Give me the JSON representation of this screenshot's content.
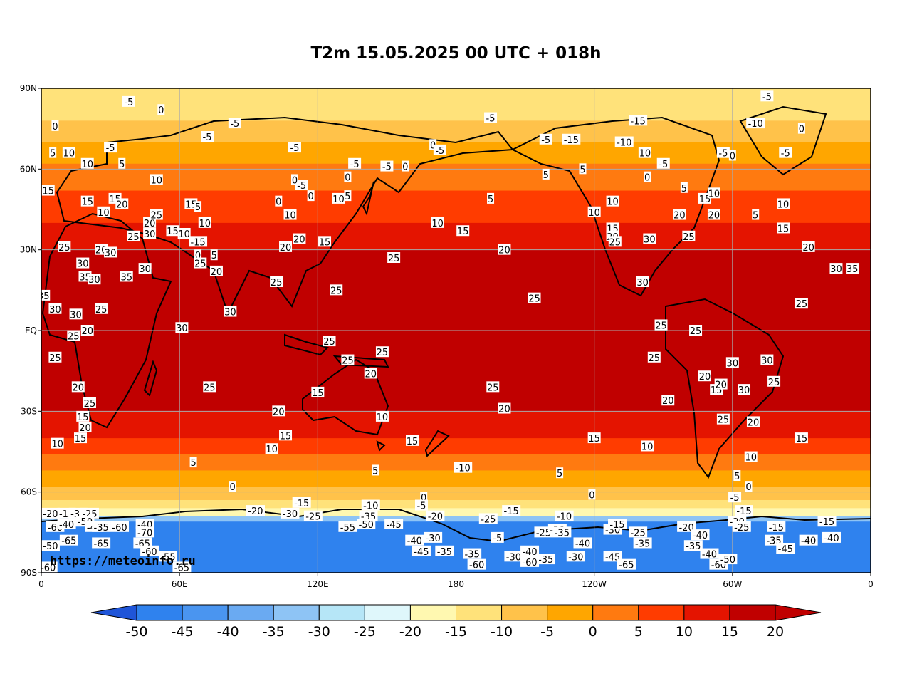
{
  "title": "T2m 15.05.2025 00 UTC + 018h",
  "watermark": "https://meteoinfo.ru",
  "axes": {
    "lat_labels": [
      "90N",
      "60N",
      "30N",
      "EQ",
      "30S",
      "60S",
      "90S"
    ],
    "lon_labels": [
      "0",
      "60E",
      "120E",
      "180",
      "120W",
      "60W",
      "0"
    ]
  },
  "colorbar": {
    "levels": [
      "-50",
      "-45",
      "-40",
      "-35",
      "-30",
      "-25",
      "-20",
      "-15",
      "-10",
      "-5",
      "0",
      "5",
      "10",
      "15",
      "20"
    ],
    "colors": [
      "#1e6fe6",
      "#2f82ee",
      "#4a95f0",
      "#6aaaf2",
      "#8ec4f5",
      "#b6e6f7",
      "#dff7fb",
      "#fff8b0",
      "#ffe27a",
      "#ffc24a",
      "#ffa600",
      "#ff7a10",
      "#ff3c00",
      "#e41400",
      "#c00000"
    ],
    "low_color": "#1f55d8",
    "high_color": "#c00000"
  },
  "bands": [
    {
      "lat": 90,
      "color": "#ffe27a"
    },
    {
      "lat": 78,
      "color": "#ffc24a"
    },
    {
      "lat": 70,
      "color": "#ffa600"
    },
    {
      "lat": 62,
      "color": "#ff7a10"
    },
    {
      "lat": 52,
      "color": "#ff3c00"
    },
    {
      "lat": 40,
      "color": "#e41400"
    },
    {
      "lat": 30,
      "color": "#c00000"
    },
    {
      "lat": -30,
      "color": "#e41400"
    },
    {
      "lat": -40,
      "color": "#ff3c00"
    },
    {
      "lat": -46,
      "color": "#ff7a10"
    },
    {
      "lat": -52,
      "color": "#ffa600"
    },
    {
      "lat": -58,
      "color": "#ffc24a"
    },
    {
      "lat": -63,
      "color": "#ffe27a"
    },
    {
      "lat": -66,
      "color": "#fff8b0"
    },
    {
      "lat": -69,
      "color": "#8ec4f5"
    },
    {
      "lat": -71,
      "color": "#2f82ee"
    },
    {
      "lat": -90,
      "color": "#1e6fe6"
    }
  ],
  "contour_labels": [
    {
      "t": "-5",
      "lon": -175,
      "lat": 88
    },
    {
      "t": "-5",
      "lon": -160,
      "lat": 87
    },
    {
      "t": "-5",
      "lon": 38,
      "lat": 85
    },
    {
      "t": "0",
      "lon": 52,
      "lat": 82
    },
    {
      "t": "-5",
      "lon": 84,
      "lat": 77
    },
    {
      "t": "-5",
      "lon": 72,
      "lat": 72
    },
    {
      "t": "-5",
      "lon": 30,
      "lat": 68
    },
    {
      "t": "0",
      "lon": 6,
      "lat": 76
    },
    {
      "t": "5",
      "lon": 5,
      "lat": 66
    },
    {
      "t": "10",
      "lon": 12,
      "lat": 66
    },
    {
      "t": "10",
      "lon": 20,
      "lat": 62
    },
    {
      "t": "15",
      "lon": 3,
      "lat": 52
    },
    {
      "t": "5",
      "lon": 35,
      "lat": 62
    },
    {
      "t": "10",
      "lon": 50,
      "lat": 56
    },
    {
      "t": "15",
      "lon": 20,
      "lat": 48
    },
    {
      "t": "10",
      "lon": 27,
      "lat": 44
    },
    {
      "t": "15",
      "lon": 32,
      "lat": 49
    },
    {
      "t": "20",
      "lon": 35,
      "lat": 47
    },
    {
      "t": "25",
      "lon": 40,
      "lat": 35
    },
    {
      "t": "20",
      "lon": 47,
      "lat": 40
    },
    {
      "t": "25",
      "lon": 50,
      "lat": 43
    },
    {
      "t": "30",
      "lon": 47,
      "lat": 36
    },
    {
      "t": "15",
      "lon": 57,
      "lat": 37
    },
    {
      "t": "10",
      "lon": 62,
      "lat": 36
    },
    {
      "t": "15",
      "lon": 65,
      "lat": 47
    },
    {
      "t": "5",
      "lon": 68,
      "lat": 46
    },
    {
      "t": "10",
      "lon": 71,
      "lat": 40
    },
    {
      "t": "-15",
      "lon": 68,
      "lat": 33
    },
    {
      "t": "0",
      "lon": 68,
      "lat": 28
    },
    {
      "t": "5",
      "lon": 75,
      "lat": 28
    },
    {
      "t": "25",
      "lon": 69,
      "lat": 25
    },
    {
      "t": "20",
      "lon": 76,
      "lat": 22
    },
    {
      "t": "25",
      "lon": 10,
      "lat": 31
    },
    {
      "t": "20",
      "lon": 26,
      "lat": 30
    },
    {
      "t": "30",
      "lon": 30,
      "lat": 29
    },
    {
      "t": "30",
      "lon": 18,
      "lat": 25
    },
    {
      "t": "35",
      "lon": 19,
      "lat": 20
    },
    {
      "t": "30",
      "lon": 23,
      "lat": 19
    },
    {
      "t": "35",
      "lon": 37,
      "lat": 20
    },
    {
      "t": "30",
      "lon": 45,
      "lat": 23
    },
    {
      "t": "35",
      "lon": 1,
      "lat": 13
    },
    {
      "t": "30",
      "lon": 6,
      "lat": 8
    },
    {
      "t": "30",
      "lon": 15,
      "lat": 6
    },
    {
      "t": "25",
      "lon": 14,
      "lat": -2
    },
    {
      "t": "20",
      "lon": 20,
      "lat": 0
    },
    {
      "t": "25",
      "lon": 26,
      "lat": 8
    },
    {
      "t": "30",
      "lon": 61,
      "lat": 1
    },
    {
      "t": "30",
      "lon": 82,
      "lat": 7
    },
    {
      "t": "25",
      "lon": 6,
      "lat": -10
    },
    {
      "t": "20",
      "lon": 16,
      "lat": -21
    },
    {
      "t": "25",
      "lon": 21,
      "lat": -27
    },
    {
      "t": "15",
      "lon": 18,
      "lat": -32
    },
    {
      "t": "20",
      "lon": 19,
      "lat": -36
    },
    {
      "t": "15",
      "lon": 17,
      "lat": -40
    },
    {
      "t": "10",
      "lon": 7,
      "lat": -42
    },
    {
      "t": "25",
      "lon": 73,
      "lat": -21
    },
    {
      "t": "20",
      "lon": 103,
      "lat": -30
    },
    {
      "t": "15",
      "lon": 106,
      "lat": -39
    },
    {
      "t": "10",
      "lon": 100,
      "lat": -44
    },
    {
      "t": "5",
      "lon": 66,
      "lat": -49
    },
    {
      "t": "0",
      "lon": 83,
      "lat": -58
    },
    {
      "t": "15",
      "lon": 120,
      "lat": -23
    },
    {
      "t": "10",
      "lon": 148,
      "lat": -32
    },
    {
      "t": "20",
      "lon": 143,
      "lat": -16
    },
    {
      "t": "25",
      "lon": 133,
      "lat": -11
    },
    {
      "t": "25",
      "lon": 125,
      "lat": -4
    },
    {
      "t": "25",
      "lon": 148,
      "lat": -8
    },
    {
      "t": "15",
      "lon": 161,
      "lat": -41
    },
    {
      "t": "5",
      "lon": 145,
      "lat": -52
    },
    {
      "t": "0",
      "lon": 166,
      "lat": -62
    },
    {
      "t": "-10",
      "lon": 183,
      "lat": -51
    },
    {
      "t": "20",
      "lon": 112,
      "lat": 34
    },
    {
      "t": "15",
      "lon": 123,
      "lat": 33
    },
    {
      "t": "25",
      "lon": 128,
      "lat": 15
    },
    {
      "t": "25",
      "lon": 102,
      "lat": 18
    },
    {
      "t": "20",
      "lon": 106,
      "lat": 31
    },
    {
      "t": "10",
      "lon": 108,
      "lat": 43
    },
    {
      "t": "0",
      "lon": 103,
      "lat": 48
    },
    {
      "t": "0",
      "lon": 117,
      "lat": 50
    },
    {
      "t": "10",
      "lon": 129,
      "lat": 49
    },
    {
      "t": "5",
      "lon": 133,
      "lat": 50
    },
    {
      "t": "-5",
      "lon": 113,
      "lat": 54
    },
    {
      "t": "0",
      "lon": 110,
      "lat": 56
    },
    {
      "t": "0",
      "lon": 133,
      "lat": 57
    },
    {
      "t": "-5",
      "lon": 150,
      "lat": 61
    },
    {
      "t": "-5",
      "lon": 136,
      "lat": 62
    },
    {
      "t": "0",
      "lon": 158,
      "lat": 61
    },
    {
      "t": "-5",
      "lon": 110,
      "lat": 68
    },
    {
      "t": "0",
      "lon": 170,
      "lat": 69
    },
    {
      "t": "-5",
      "lon": 173,
      "lat": 67
    },
    {
      "t": "10",
      "lon": 172,
      "lat": 40
    },
    {
      "t": "15",
      "lon": 183,
      "lat": 37
    },
    {
      "t": "20",
      "lon": 201,
      "lat": 30
    },
    {
      "t": "25",
      "lon": 153,
      "lat": 27
    },
    {
      "t": "25",
      "lon": 214,
      "lat": 12
    },
    {
      "t": "25",
      "lon": 196,
      "lat": -21
    },
    {
      "t": "20",
      "lon": 201,
      "lat": -29
    },
    {
      "t": "15",
      "lon": 240,
      "lat": -40
    },
    {
      "t": "10",
      "lon": 263,
      "lat": -43
    },
    {
      "t": "5",
      "lon": 225,
      "lat": -53
    },
    {
      "t": "0",
      "lon": 239,
      "lat": -61
    },
    {
      "t": "-5",
      "lon": 198,
      "lat": -77
    },
    {
      "t": "5",
      "lon": 195,
      "lat": 49
    },
    {
      "t": "-5",
      "lon": 195,
      "lat": 79
    },
    {
      "t": "-5",
      "lon": 219,
      "lat": 71
    },
    {
      "t": "5",
      "lon": 219,
      "lat": 58
    },
    {
      "t": "5",
      "lon": 235,
      "lat": 60
    },
    {
      "t": "10",
      "lon": 240,
      "lat": 44
    },
    {
      "t": "10",
      "lon": 248,
      "lat": 48
    },
    {
      "t": "15",
      "lon": 248,
      "lat": 38
    },
    {
      "t": "20",
      "lon": 248,
      "lat": 35
    },
    {
      "t": "25",
      "lon": 249,
      "lat": 33
    },
    {
      "t": "30",
      "lon": 264,
      "lat": 34
    },
    {
      "t": "30",
      "lon": 261,
      "lat": 18
    },
    {
      "t": "25",
      "lon": 269,
      "lat": 2
    },
    {
      "t": "25",
      "lon": 284,
      "lat": 0
    },
    {
      "t": "25",
      "lon": 266,
      "lat": -10
    },
    {
      "t": "20",
      "lon": 272,
      "lat": -26
    },
    {
      "t": "20",
      "lon": 288,
      "lat": -17
    },
    {
      "t": "15",
      "lon": 293,
      "lat": -22
    },
    {
      "t": "20",
      "lon": 295,
      "lat": -20
    },
    {
      "t": "30",
      "lon": 300,
      "lat": -12
    },
    {
      "t": "30",
      "lon": 305,
      "lat": -22
    },
    {
      "t": "30",
      "lon": 315,
      "lat": -11
    },
    {
      "t": "25",
      "lon": 318,
      "lat": -19
    },
    {
      "t": "25",
      "lon": 296,
      "lat": -33
    },
    {
      "t": "20",
      "lon": 309,
      "lat": -34
    },
    {
      "t": "15",
      "lon": 330,
      "lat": -40
    },
    {
      "t": "10",
      "lon": 308,
      "lat": -47
    },
    {
      "t": "5",
      "lon": 302,
      "lat": -54
    },
    {
      "t": "0",
      "lon": 307,
      "lat": -58
    },
    {
      "t": "25",
      "lon": 330,
      "lat": 10
    },
    {
      "t": "30",
      "lon": 345,
      "lat": 23
    },
    {
      "t": "35",
      "lon": 352,
      "lat": 23
    },
    {
      "t": "20",
      "lon": 333,
      "lat": 31
    },
    {
      "t": "15",
      "lon": 322,
      "lat": 38
    },
    {
      "t": "10",
      "lon": 322,
      "lat": 47
    },
    {
      "t": "5",
      "lon": 310,
      "lat": 43
    },
    {
      "t": "20",
      "lon": 292,
      "lat": 43
    },
    {
      "t": "25",
      "lon": 281,
      "lat": 35
    },
    {
      "t": "20",
      "lon": 277,
      "lat": 43
    },
    {
      "t": "15",
      "lon": 288,
      "lat": 49
    },
    {
      "t": "10",
      "lon": 292,
      "lat": 51
    },
    {
      "t": "5",
      "lon": 279,
      "lat": 53
    },
    {
      "t": "0",
      "lon": 263,
      "lat": 57
    },
    {
      "t": "-5",
      "lon": 270,
      "lat": 62
    },
    {
      "t": "10",
      "lon": 262,
      "lat": 66
    },
    {
      "t": "-10",
      "lon": 253,
      "lat": 70
    },
    {
      "t": "-15",
      "lon": 259,
      "lat": 78
    },
    {
      "t": "-5",
      "lon": 296,
      "lat": 66
    },
    {
      "t": "0",
      "lon": 300,
      "lat": 65
    },
    {
      "t": "-10",
      "lon": 310,
      "lat": 77
    },
    {
      "t": "0",
      "lon": 330,
      "lat": 75
    },
    {
      "t": "-5",
      "lon": 323,
      "lat": 66
    },
    {
      "t": "-5",
      "lon": 315,
      "lat": 87
    },
    {
      "t": "-15",
      "lon": 230,
      "lat": 71
    },
    {
      "t": "-20",
      "lon": 93,
      "lat": -67
    },
    {
      "t": "-30",
      "lon": 108,
      "lat": -68
    },
    {
      "t": "-15",
      "lon": 113,
      "lat": -64
    },
    {
      "t": "-25",
      "lon": 118,
      "lat": -69
    },
    {
      "t": "-10",
      "lon": 143,
      "lat": -65
    },
    {
      "t": "-35",
      "lon": 142,
      "lat": -69
    },
    {
      "t": "-50",
      "lon": 141,
      "lat": -72
    },
    {
      "t": "-55",
      "lon": 133,
      "lat": -73
    },
    {
      "t": "-45",
      "lon": 153,
      "lat": -72
    },
    {
      "t": "-5",
      "lon": 165,
      "lat": -65
    },
    {
      "t": "-20",
      "lon": 171,
      "lat": -69
    },
    {
      "t": "-30",
      "lon": 170,
      "lat": -77
    },
    {
      "t": "-40",
      "lon": 162,
      "lat": -78
    },
    {
      "t": "-45",
      "lon": 165,
      "lat": -82
    },
    {
      "t": "-35",
      "lon": 175,
      "lat": -82
    },
    {
      "t": "-35",
      "lon": 187,
      "lat": -83
    },
    {
      "t": "-60",
      "lon": 189,
      "lat": -87
    },
    {
      "t": "-30",
      "lon": 205,
      "lat": -84
    },
    {
      "t": "-35",
      "lon": 219,
      "lat": -85
    },
    {
      "t": "-40",
      "lon": 212,
      "lat": -82
    },
    {
      "t": "-60",
      "lon": 212,
      "lat": -86
    },
    {
      "t": "-25",
      "lon": 194,
      "lat": -70
    },
    {
      "t": "-15",
      "lon": 204,
      "lat": -67
    },
    {
      "t": "-10",
      "lon": 227,
      "lat": -69
    },
    {
      "t": "-25",
      "lon": 218,
      "lat": -75
    },
    {
      "t": "-20",
      "lon": 224,
      "lat": -74
    },
    {
      "t": "-35",
      "lon": 226,
      "lat": -75
    },
    {
      "t": "-40",
      "lon": 235,
      "lat": -79
    },
    {
      "t": "-30",
      "lon": 232,
      "lat": -84
    },
    {
      "t": "-45",
      "lon": 248,
      "lat": -84
    },
    {
      "t": "-65",
      "lon": 254,
      "lat": -87
    },
    {
      "t": "-30",
      "lon": 248,
      "lat": -74
    },
    {
      "t": "-15",
      "lon": 250,
      "lat": -72
    },
    {
      "t": "-25",
      "lon": 259,
      "lat": -75
    },
    {
      "t": "-35",
      "lon": 261,
      "lat": -79
    },
    {
      "t": "-20",
      "lon": 280,
      "lat": -73
    },
    {
      "t": "-40",
      "lon": 286,
      "lat": -76
    },
    {
      "t": "-35",
      "lon": 283,
      "lat": -80
    },
    {
      "t": "-40",
      "lon": 290,
      "lat": -83
    },
    {
      "t": "-60",
      "lon": 294,
      "lat": -87
    },
    {
      "t": "-50",
      "lon": 298,
      "lat": -85
    },
    {
      "t": "-20",
      "lon": 302,
      "lat": -71
    },
    {
      "t": "-25",
      "lon": 304,
      "lat": -73
    },
    {
      "t": "-5",
      "lon": 301,
      "lat": -62
    },
    {
      "t": "-15",
      "lon": 305,
      "lat": -67
    },
    {
      "t": "-15",
      "lon": 319,
      "lat": -73
    },
    {
      "t": "-35",
      "lon": 318,
      "lat": -78
    },
    {
      "t": "-45",
      "lon": 323,
      "lat": -81
    },
    {
      "t": "-40",
      "lon": 333,
      "lat": -78
    },
    {
      "t": "-40",
      "lon": 343,
      "lat": -77
    },
    {
      "t": "-15",
      "lon": 341,
      "lat": -71
    },
    {
      "t": "-20",
      "lon": 4,
      "lat": -68
    },
    {
      "t": "-60",
      "lon": 6,
      "lat": -73
    },
    {
      "t": "-15",
      "lon": 11,
      "lat": -68
    },
    {
      "t": "-40",
      "lon": 11,
      "lat": -72
    },
    {
      "t": "-50",
      "lon": 4,
      "lat": -80
    },
    {
      "t": "-65",
      "lon": 12,
      "lat": -78
    },
    {
      "t": "-60",
      "lon": 3,
      "lat": -88
    },
    {
      "t": "-30",
      "lon": 16,
      "lat": -68
    },
    {
      "t": "-25",
      "lon": 21,
      "lat": -68
    },
    {
      "t": "-50",
      "lon": 19,
      "lat": -71
    },
    {
      "t": "-45",
      "lon": 23,
      "lat": -73
    },
    {
      "t": "-35",
      "lon": 26,
      "lat": -73
    },
    {
      "t": "-60",
      "lon": 34,
      "lat": -73
    },
    {
      "t": "-65",
      "lon": 26,
      "lat": -79
    },
    {
      "t": "-65",
      "lon": 44,
      "lat": -79
    },
    {
      "t": "-60",
      "lon": 47,
      "lat": -82
    },
    {
      "t": "-40",
      "lon": 45,
      "lat": -72
    },
    {
      "t": "-70",
      "lon": 45,
      "lat": -75
    },
    {
      "t": "-55",
      "lon": 55,
      "lat": -84
    },
    {
      "t": "-65",
      "lon": 61,
      "lat": -88
    }
  ]
}
